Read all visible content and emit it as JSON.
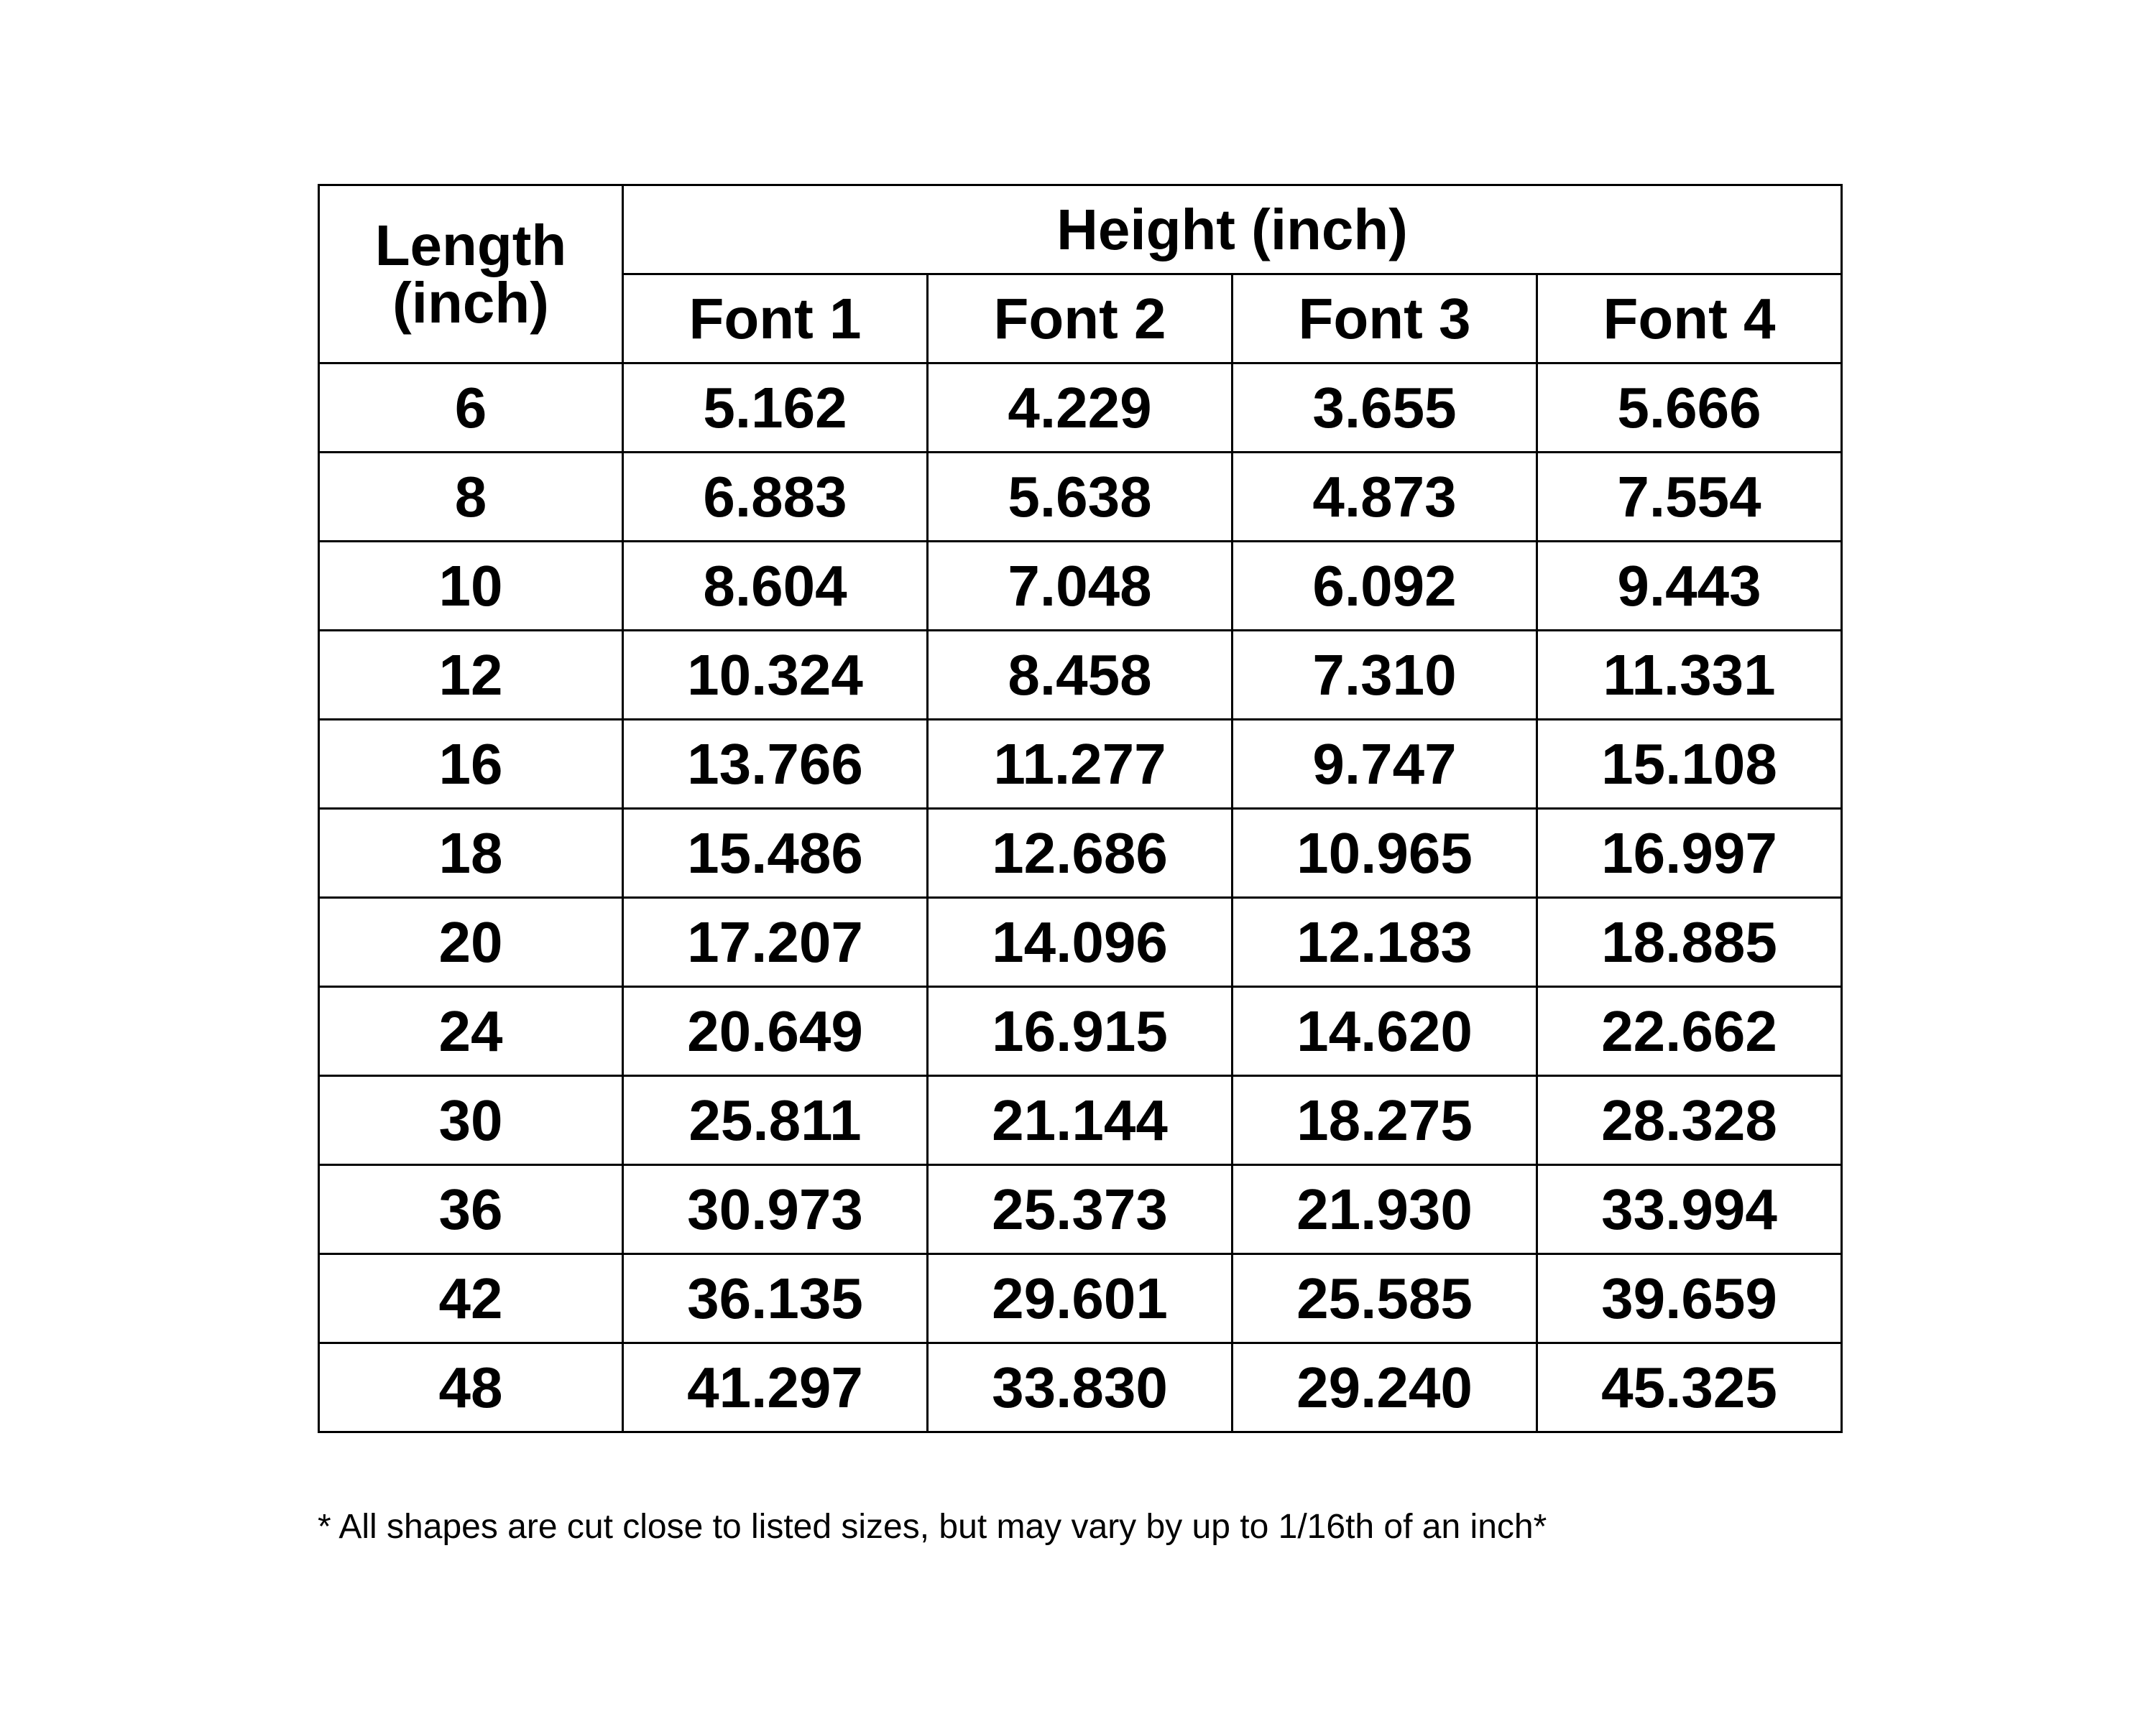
{
  "table": {
    "length_header_line1": "Length",
    "length_header_line2": "(inch)",
    "group_header": "Height (inch)",
    "columns": [
      "Font 1",
      "Font 2",
      "Font 3",
      "Font 4"
    ],
    "rows": [
      {
        "length": "6",
        "values": [
          "5.162",
          "4.229",
          "3.655",
          "5.666"
        ]
      },
      {
        "length": "8",
        "values": [
          "6.883",
          "5.638",
          "4.873",
          "7.554"
        ]
      },
      {
        "length": "10",
        "values": [
          "8.604",
          "7.048",
          "6.092",
          "9.443"
        ]
      },
      {
        "length": "12",
        "values": [
          "10.324",
          "8.458",
          "7.310",
          "11.331"
        ]
      },
      {
        "length": "16",
        "values": [
          "13.766",
          "11.277",
          "9.747",
          "15.108"
        ]
      },
      {
        "length": "18",
        "values": [
          "15.486",
          "12.686",
          "10.965",
          "16.997"
        ]
      },
      {
        "length": "20",
        "values": [
          "17.207",
          "14.096",
          "12.183",
          "18.885"
        ]
      },
      {
        "length": "24",
        "values": [
          "20.649",
          "16.915",
          "14.620",
          "22.662"
        ]
      },
      {
        "length": "30",
        "values": [
          "25.811",
          "21.144",
          "18.275",
          "28.328"
        ]
      },
      {
        "length": "36",
        "values": [
          "30.973",
          "25.373",
          "21.930",
          "33.994"
        ]
      },
      {
        "length": "42",
        "values": [
          "36.135",
          "29.601",
          "25.585",
          "39.659"
        ]
      },
      {
        "length": "48",
        "values": [
          "41.297",
          "33.830",
          "29.240",
          "45.325"
        ]
      }
    ]
  },
  "footnote": "* All shapes are cut close to listed sizes, but may vary by up to 1/16th of an inch*"
}
